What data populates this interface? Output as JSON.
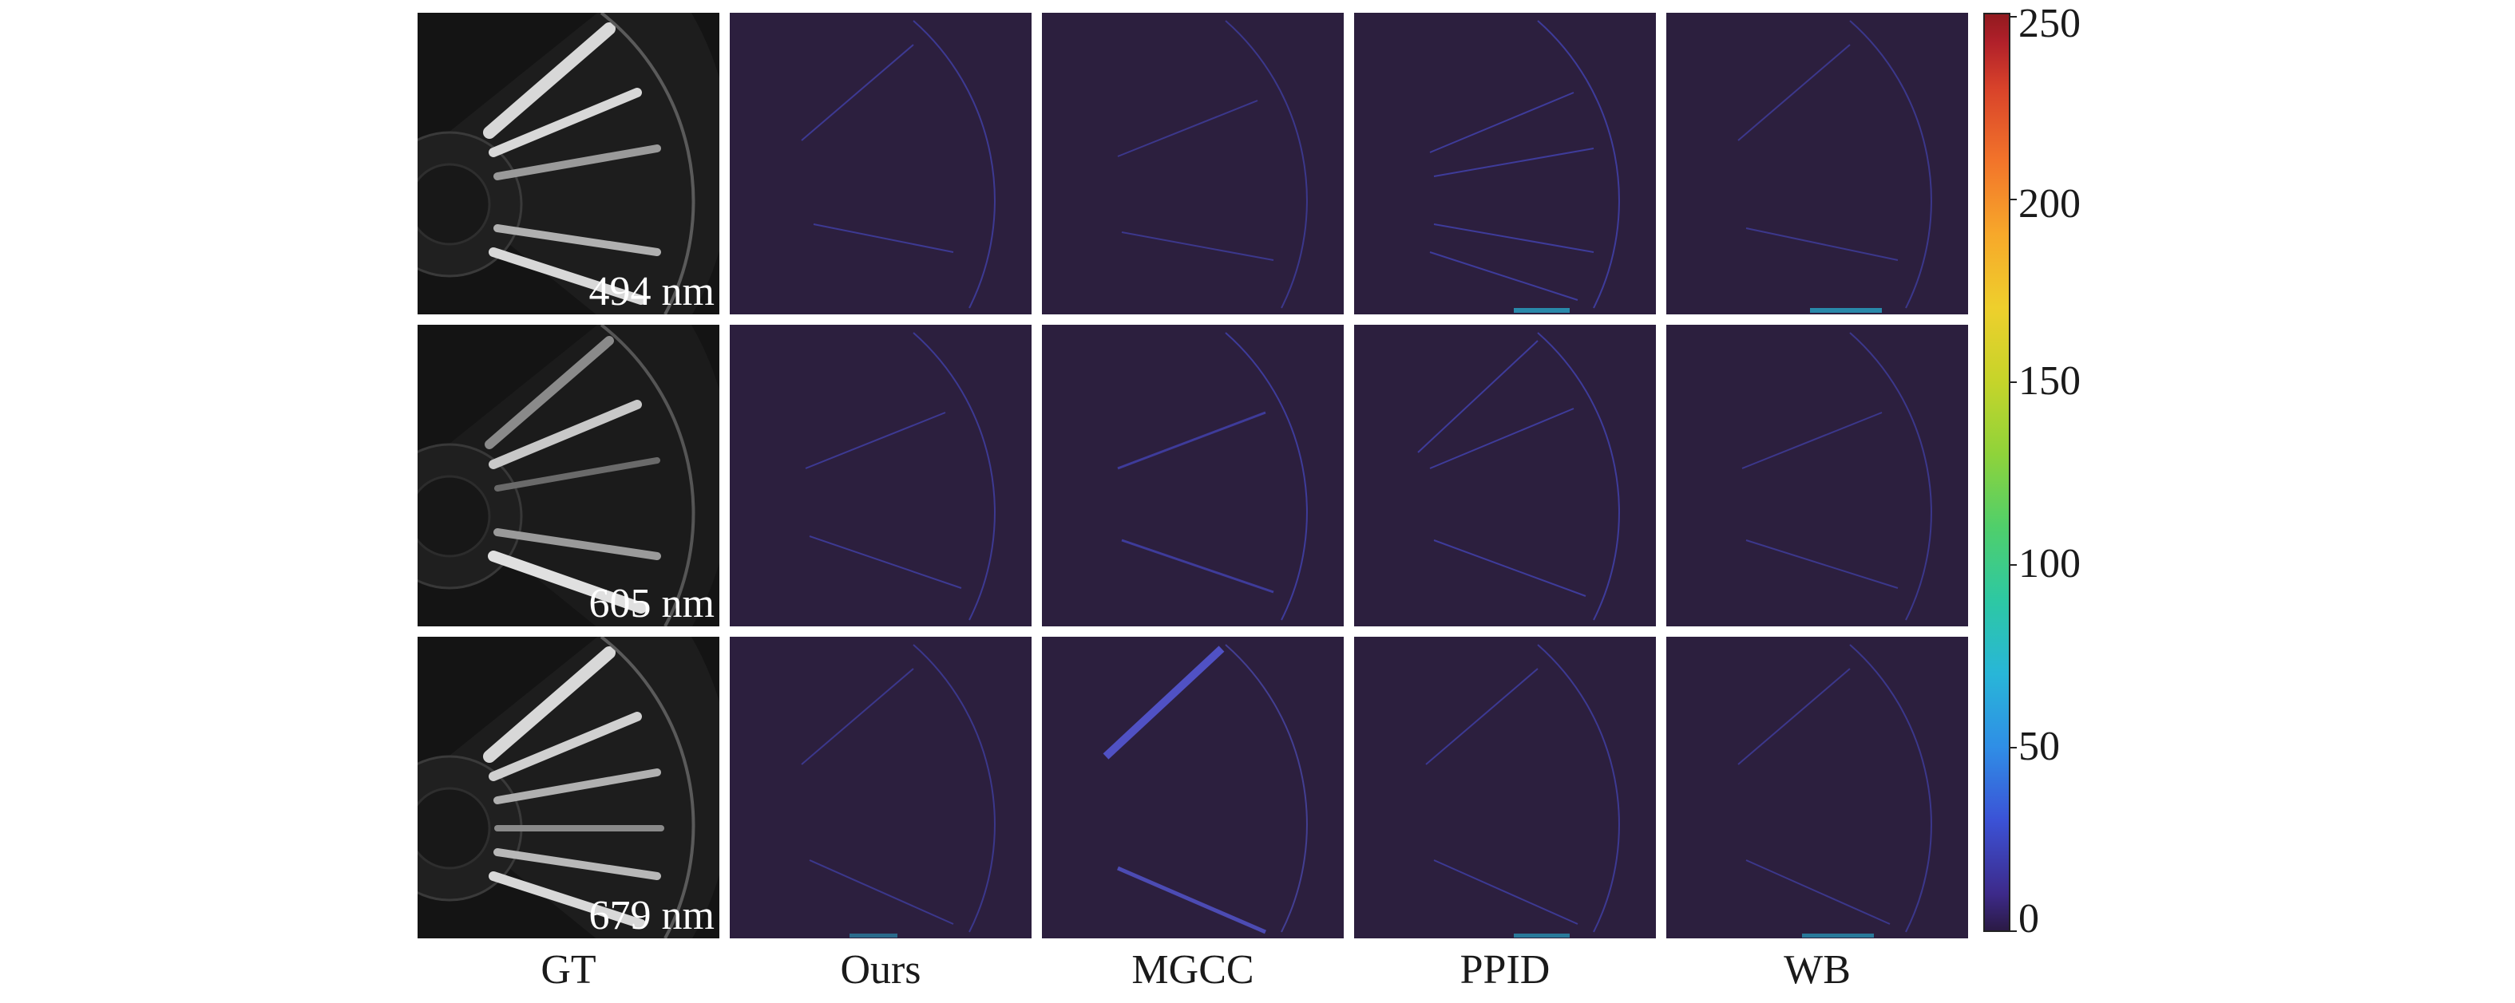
{
  "columns": [
    "GT",
    "Ours",
    "MGCC",
    "PPID",
    "WB"
  ],
  "rows": [
    {
      "wavelength": "494 nm"
    },
    {
      "wavelength": "605 nm"
    },
    {
      "wavelength": "679 nm"
    }
  ],
  "colorbar": {
    "ticks": [
      "0",
      "50",
      "100",
      "150",
      "200",
      "250"
    ],
    "colormap": "turbo",
    "dark_color": "#2c1f3e",
    "high_color": "#921a1f"
  },
  "colors": {
    "gt_background": "#141414",
    "error_background": "#2c1f3e",
    "error_highlight": "#4b4fd8"
  }
}
